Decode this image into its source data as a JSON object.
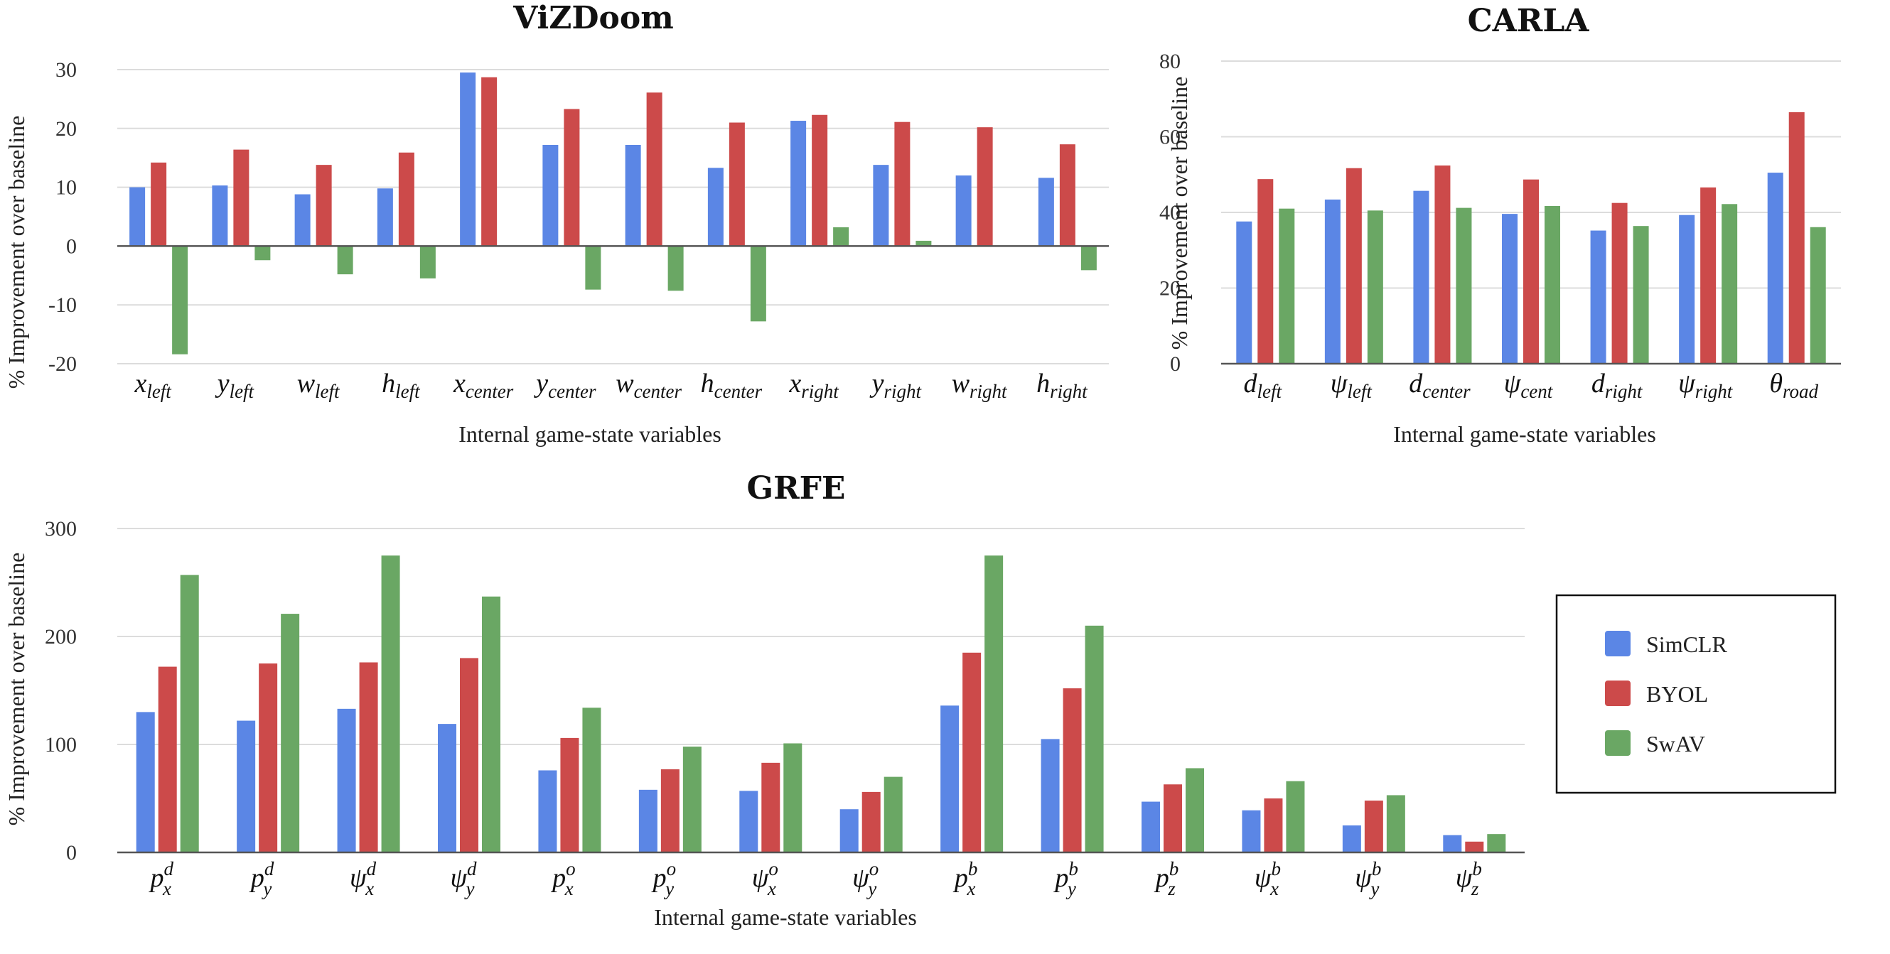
{
  "colors": {
    "SimCLR": "#5b86e5",
    "BYOL": "#cc4a4a",
    "SwAV": "#6aa764"
  },
  "legend": {
    "items": [
      {
        "name": "SimCLR",
        "color": "#5b86e5"
      },
      {
        "name": "BYOL",
        "color": "#cc4a4a"
      },
      {
        "name": "SwAV",
        "color": "#6aa764"
      }
    ]
  },
  "chart_data": [
    {
      "id": "vizdoom",
      "type": "bar",
      "title": "ViZDoom",
      "xlabel": "Internal game-state variables",
      "ylabel": "% Improvement over baseline",
      "ylim": [
        -20,
        30
      ],
      "yticks": [
        -20,
        -10,
        0,
        10,
        20,
        30
      ],
      "grid": true,
      "categories": [
        {
          "base": "x",
          "sub": "left"
        },
        {
          "base": "y",
          "sub": "left"
        },
        {
          "base": "w",
          "sub": "left"
        },
        {
          "base": "h",
          "sub": "left"
        },
        {
          "base": "x",
          "sub": "center"
        },
        {
          "base": "y",
          "sub": "center"
        },
        {
          "base": "w",
          "sub": "center"
        },
        {
          "base": "h",
          "sub": "center"
        },
        {
          "base": "x",
          "sub": "right"
        },
        {
          "base": "y",
          "sub": "right"
        },
        {
          "base": "w",
          "sub": "right"
        },
        {
          "base": "h",
          "sub": "right"
        }
      ],
      "series": [
        {
          "name": "SimCLR",
          "values": [
            10,
            10.3,
            8.8,
            9.8,
            29.5,
            17.2,
            17.2,
            13.3,
            21.3,
            13.8,
            12,
            11.6
          ]
        },
        {
          "name": "BYOL",
          "values": [
            14.2,
            16.4,
            13.8,
            15.9,
            28.7,
            23.3,
            26.1,
            21,
            22.3,
            21.1,
            20.2,
            17.3
          ]
        },
        {
          "name": "SwAV",
          "values": [
            -18.4,
            -2.4,
            -4.8,
            -5.5,
            0,
            -7.4,
            -7.6,
            -12.8,
            3.2,
            0.9,
            0,
            -4.1
          ]
        }
      ]
    },
    {
      "id": "carla",
      "type": "bar",
      "title": "CARLA",
      "xlabel": "Internal game-state variables",
      "ylabel": "% Improvement over baseline",
      "ylim": [
        0,
        80
      ],
      "yticks": [
        0,
        20,
        40,
        60,
        80
      ],
      "grid": true,
      "categories": [
        {
          "base": "d",
          "sub": "left"
        },
        {
          "base": "ψ",
          "sub": "left"
        },
        {
          "base": "d",
          "sub": "center"
        },
        {
          "base": "ψ",
          "sub": "cent"
        },
        {
          "base": "d",
          "sub": "right"
        },
        {
          "base": "ψ",
          "sub": "right"
        },
        {
          "base": "θ",
          "sub": "road"
        }
      ],
      "series": [
        {
          "name": "SimCLR",
          "values": [
            37.6,
            43.4,
            45.7,
            39.6,
            35.2,
            39.3,
            50.5
          ]
        },
        {
          "name": "BYOL",
          "values": [
            48.8,
            51.7,
            52.4,
            48.7,
            42.5,
            46.6,
            66.5
          ]
        },
        {
          "name": "SwAV",
          "values": [
            41,
            40.5,
            41.2,
            41.7,
            36.4,
            42.2,
            36.1
          ]
        }
      ]
    },
    {
      "id": "grfe",
      "type": "bar",
      "title": "GRFE",
      "xlabel": "Internal game-state variables",
      "ylabel": "% Improvement over baseline",
      "ylim": [
        0,
        300
      ],
      "yticks": [
        0,
        100,
        200,
        300
      ],
      "grid": true,
      "categories": [
        {
          "base": "p",
          "sub": "x",
          "sup": "d"
        },
        {
          "base": "p",
          "sub": "y",
          "sup": "d"
        },
        {
          "base": "ψ",
          "sub": "x",
          "sup": "d"
        },
        {
          "base": "ψ",
          "sub": "y",
          "sup": "d"
        },
        {
          "base": "p",
          "sub": "x",
          "sup": "o"
        },
        {
          "base": "p",
          "sub": "y",
          "sup": "o"
        },
        {
          "base": "ψ",
          "sub": "x",
          "sup": "o"
        },
        {
          "base": "ψ",
          "sub": "y",
          "sup": "o"
        },
        {
          "base": "p",
          "sub": "x",
          "sup": "b"
        },
        {
          "base": "p",
          "sub": "y",
          "sup": "b"
        },
        {
          "base": "p",
          "sub": "z",
          "sup": "b"
        },
        {
          "base": "ψ",
          "sub": "x",
          "sup": "b"
        },
        {
          "base": "ψ",
          "sub": "y",
          "sup": "b"
        },
        {
          "base": "ψ",
          "sub": "z",
          "sup": "b"
        }
      ],
      "series": [
        {
          "name": "SimCLR",
          "values": [
            130,
            122,
            133,
            119,
            76,
            58,
            57,
            40,
            136,
            105,
            47,
            39,
            25,
            16
          ]
        },
        {
          "name": "BYOL",
          "values": [
            172,
            175,
            176,
            180,
            106,
            77,
            83,
            56,
            185,
            152,
            63,
            50,
            48,
            10
          ]
        },
        {
          "name": "SwAV",
          "values": [
            257,
            221,
            275,
            237,
            134,
            98,
            101,
            70,
            275,
            210,
            78,
            66,
            53,
            17
          ]
        }
      ]
    }
  ]
}
